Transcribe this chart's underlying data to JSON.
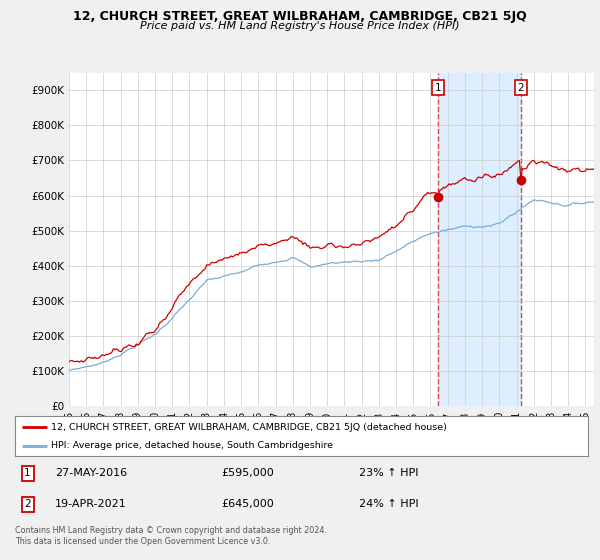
{
  "title": "12, CHURCH STREET, GREAT WILBRAHAM, CAMBRIDGE, CB21 5JQ",
  "subtitle": "Price paid vs. HM Land Registry's House Price Index (HPI)",
  "legend_line1": "12, CHURCH STREET, GREAT WILBRAHAM, CAMBRIDGE, CB21 5JQ (detached house)",
  "legend_line2": "HPI: Average price, detached house, South Cambridgeshire",
  "sale1_date": "27-MAY-2016",
  "sale1_price": "£595,000",
  "sale1_hpi": "23% ↑ HPI",
  "sale1_x": 2016.41,
  "sale1_y": 595000,
  "sale2_date": "19-APR-2021",
  "sale2_price": "£645,000",
  "sale2_hpi": "24% ↑ HPI",
  "sale2_x": 2021.29,
  "sale2_y": 645000,
  "footer": "Contains HM Land Registry data © Crown copyright and database right 2024.\nThis data is licensed under the Open Government Licence v3.0.",
  "ylim": [
    0,
    950000
  ],
  "yticks": [
    0,
    100000,
    200000,
    300000,
    400000,
    500000,
    600000,
    700000,
    800000,
    900000
  ],
  "ytick_labels": [
    "£0",
    "£100K",
    "£200K",
    "£300K",
    "£400K",
    "£500K",
    "£600K",
    "£700K",
    "£800K",
    "£900K"
  ],
  "red_color": "#cc0000",
  "blue_color": "#7aadd4",
  "shade_color": "#ddeeff",
  "sale_vline_color": "#dd4444",
  "background_color": "#f0f0f0",
  "plot_bg_color": "#ffffff",
  "grid_color": "#cccccc",
  "xlim_start": 1995,
  "xlim_end": 2025.5
}
